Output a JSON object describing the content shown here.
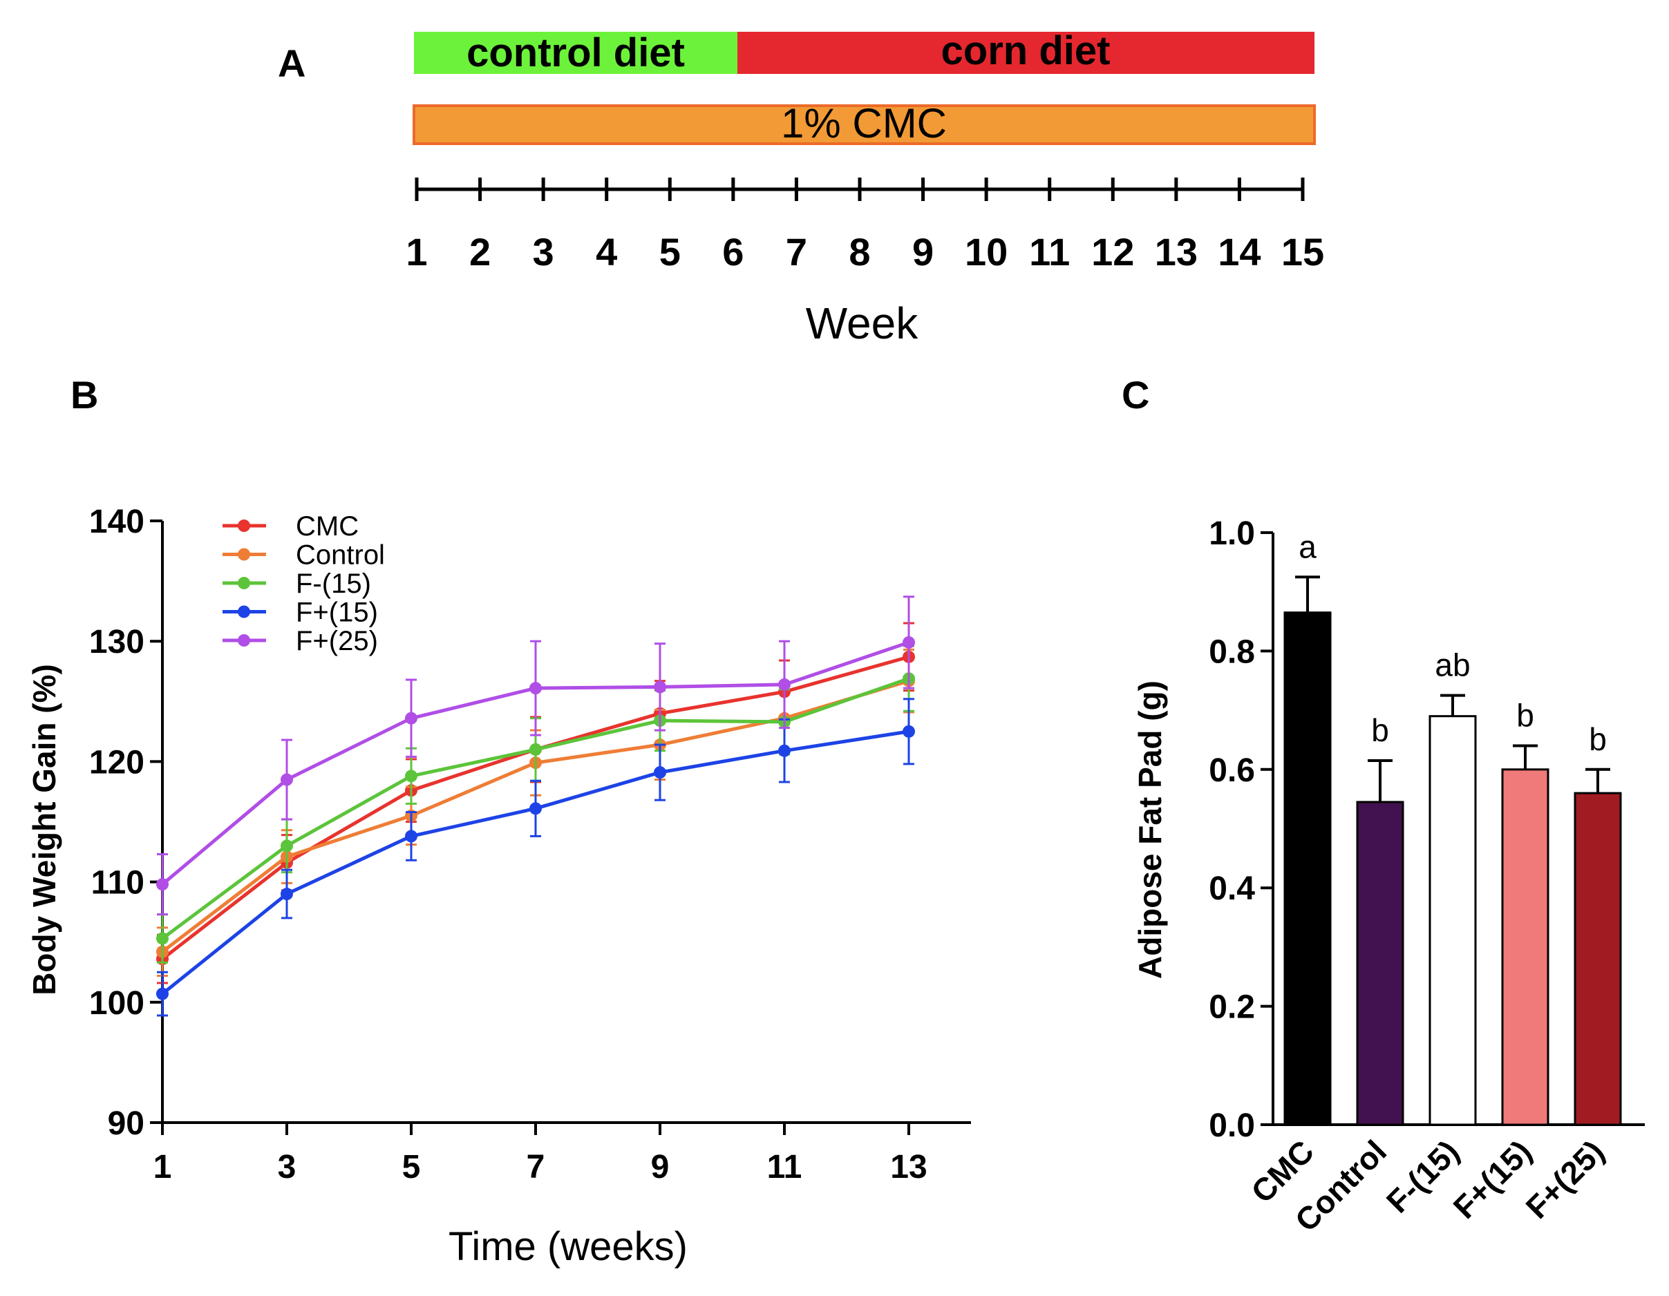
{
  "panel_a": {
    "letter": "A",
    "phase_bars": [
      {
        "label": "control diet",
        "color": "#6cf23a",
        "start_week": 1,
        "end_week": 6
      },
      {
        "label": "corn diet",
        "color": "#e5272f",
        "start_week": 6,
        "end_week": 15
      }
    ],
    "treatment_bar": {
      "label": "1% CMC",
      "color": "#f29a35",
      "border_color": "#ec6a2a",
      "start_week": 1,
      "end_week": 15
    },
    "timeline_weeks": [
      "1",
      "2",
      "3",
      "4",
      "5",
      "6",
      "7",
      "8",
      "9",
      "10",
      "11",
      "12",
      "13",
      "14",
      "15"
    ],
    "axis_label": "Week"
  },
  "panel_b": {
    "letter": "B"
  },
  "panel_c": {
    "letter": "C"
  },
  "chart_data": [
    {
      "type": "line",
      "panel": "B",
      "title": "",
      "xlabel": "Time (weeks)",
      "ylabel": "Body Weight Gain (%)",
      "x": [
        1,
        3,
        5,
        7,
        9,
        11,
        13
      ],
      "xticks": [
        "1",
        "3",
        "5",
        "7",
        "9",
        "11",
        "13"
      ],
      "xlim": [
        1,
        14.3
      ],
      "ylim": [
        90,
        140
      ],
      "yticks": [
        "90",
        "100",
        "110",
        "120",
        "130",
        "140"
      ],
      "legend_position": "top-left",
      "series": [
        {
          "name": "CMC",
          "color": "#e8332e",
          "values": [
            103.6,
            111.6,
            117.6,
            121.0,
            124.0,
            125.8,
            128.7
          ],
          "errors": [
            2.0,
            2.3,
            2.6,
            2.7,
            2.7,
            2.6,
            2.8
          ]
        },
        {
          "name": "Control",
          "color": "#ef7d35",
          "values": [
            104.2,
            112.1,
            115.5,
            119.9,
            121.4,
            123.6,
            126.7
          ],
          "errors": [
            2.0,
            2.2,
            2.4,
            2.7,
            2.9,
            2.9,
            2.6
          ]
        },
        {
          "name": "F-(15)",
          "color": "#5cc43a",
          "values": [
            105.3,
            113.0,
            118.8,
            121.0,
            123.4,
            123.3,
            126.9
          ],
          "errors": [
            2.0,
            2.2,
            2.3,
            2.6,
            2.5,
            2.7,
            2.7
          ]
        },
        {
          "name": "F+(15)",
          "color": "#1d43e6",
          "values": [
            100.7,
            109.0,
            113.8,
            116.1,
            119.1,
            120.9,
            122.5
          ],
          "errors": [
            1.8,
            2.0,
            2.0,
            2.3,
            2.3,
            2.6,
            2.7
          ]
        },
        {
          "name": "F+(25)",
          "color": "#b04ee6",
          "values": [
            109.8,
            118.5,
            123.6,
            126.1,
            126.2,
            126.4,
            129.9
          ],
          "errors": [
            2.5,
            3.3,
            3.2,
            3.9,
            3.6,
            3.6,
            3.8
          ]
        }
      ]
    },
    {
      "type": "bar",
      "panel": "C",
      "title": "",
      "xlabel": "",
      "ylabel": "Adipose Fat Pad (g)",
      "ylim": [
        0,
        1.0
      ],
      "yticks": [
        "0.0",
        "0.2",
        "0.4",
        "0.6",
        "0.8",
        "1.0"
      ],
      "categories": [
        "CMC",
        "Control",
        "F-(15)",
        "F+(15)",
        "F+(25)"
      ],
      "values": [
        0.865,
        0.545,
        0.69,
        0.6,
        0.56
      ],
      "errors": [
        0.06,
        0.07,
        0.035,
        0.04,
        0.04
      ],
      "colors": [
        "#000000",
        "#42114f",
        "#ffffff",
        "#ef7a79",
        "#a11b22"
      ],
      "significance": [
        "a",
        "b",
        "ab",
        "b",
        "b"
      ]
    }
  ]
}
